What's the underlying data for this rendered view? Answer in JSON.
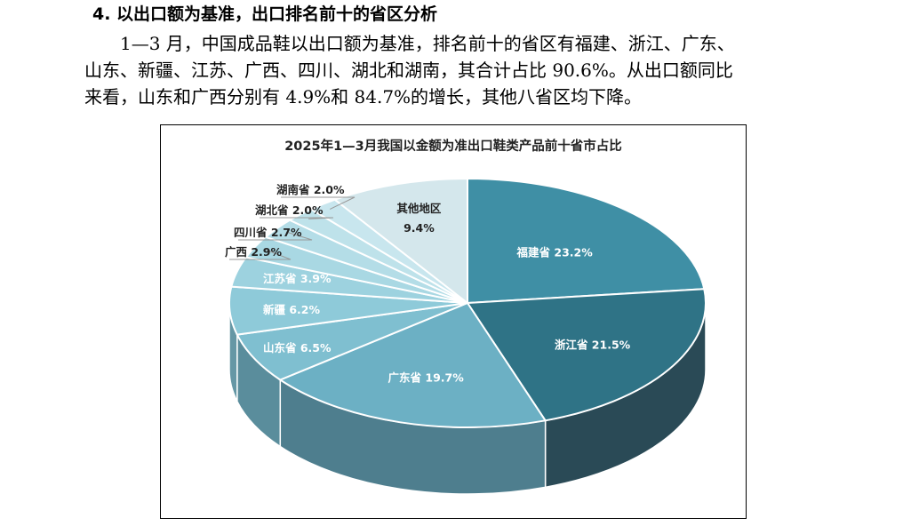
{
  "section": {
    "heading": "4. 以出口额为基准，出口排名前十的省区分析",
    "lines": [
      "1—3 月，中国成品鞋以出口额为基准，排名前十的省区有福建、浙江、广东、",
      "山东、新疆、江苏、广西、四川、湖北和湖南，其合计占比 90.6%。从出口额同比",
      "来看，山东和广西分别有 4.9%和 84.7%的增长，其他八省区均下降。"
    ]
  },
  "chart_data": {
    "type": "pie",
    "title": "2025年1—3月我国以金额为准出口鞋类产品前十省市占比",
    "slices": [
      {
        "name": "福建省",
        "value": 23.2,
        "label": "福建省 23.2%",
        "color": "#3f8fa5",
        "side": "#2e5f70"
      },
      {
        "name": "浙江省",
        "value": 21.5,
        "label": "浙江省 21.5%",
        "color": "#2f7386",
        "side": "#2a4a56"
      },
      {
        "name": "广东省",
        "value": 19.7,
        "label": "广东省 19.7%",
        "color": "#6cb0c4",
        "side": "#4e7e8e"
      },
      {
        "name": "山东省",
        "value": 6.5,
        "label": "山东省 6.5%",
        "color": "#7fbfd0",
        "side": "#5a8d9c"
      },
      {
        "name": "新疆",
        "value": 6.2,
        "label": "新疆 6.2%",
        "color": "#8ecad9",
        "side": "#6597a5"
      },
      {
        "name": "江苏省",
        "value": 3.9,
        "label": "江苏省 3.9%",
        "color": "#9dd2df",
        "side": "#6b9ca9"
      },
      {
        "name": "广西",
        "value": 2.9,
        "label": "广西 2.9%",
        "color": "#a9d8e3",
        "side": "#73a3ae"
      },
      {
        "name": "四川省",
        "value": 2.7,
        "label": "四川省 2.7%",
        "color": "#b4dde7",
        "side": "#7aa8b3"
      },
      {
        "name": "湖北省",
        "value": 2.0,
        "label": "湖北省 2.0%",
        "color": "#bee2ea",
        "side": "#82adb7"
      },
      {
        "name": "湖南省",
        "value": 2.0,
        "label": "湖南省 2.0%",
        "color": "#c8e6ee",
        "side": "#8ab1bb"
      },
      {
        "name": "其他地区",
        "value": 9.4,
        "label": "其他地区 9.4%",
        "color": "#d4e7ec",
        "side": "#98b4bc"
      }
    ]
  }
}
